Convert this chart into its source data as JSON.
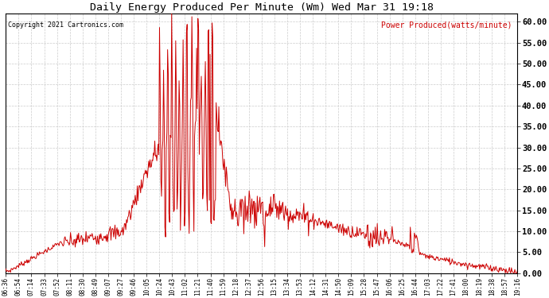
{
  "title": "Daily Energy Produced Per Minute (Wm) Wed Mar 31 19:18",
  "legend_label": "Power Produced(watts/minute)",
  "copyright_text": "Copyright 2021 Cartronics.com",
  "line_color": "#cc0000",
  "bg_color": "#ffffff",
  "grid_color": "#cccccc",
  "ylim": [
    0,
    62
  ],
  "yticks": [
    0,
    5,
    10,
    15,
    20,
    25,
    30,
    35,
    40,
    45,
    50,
    55,
    60
  ],
  "ytick_labels": [
    "0.00",
    "5.00",
    "10.00",
    "15.00",
    "20.00",
    "25.00",
    "30.00",
    "35.00",
    "40.00",
    "45.00",
    "50.00",
    "55.00",
    "60.00"
  ],
  "xtick_labels": [
    "06:36",
    "06:54",
    "07:14",
    "07:33",
    "07:52",
    "08:11",
    "08:30",
    "08:49",
    "09:07",
    "09:27",
    "09:46",
    "10:05",
    "10:24",
    "10:43",
    "11:02",
    "11:21",
    "11:40",
    "11:59",
    "12:18",
    "12:37",
    "12:56",
    "13:15",
    "13:34",
    "13:53",
    "14:12",
    "14:31",
    "14:50",
    "15:09",
    "15:28",
    "15:47",
    "16:06",
    "16:25",
    "16:44",
    "17:03",
    "17:22",
    "17:41",
    "18:00",
    "18:19",
    "18:38",
    "18:57",
    "19:16"
  ]
}
